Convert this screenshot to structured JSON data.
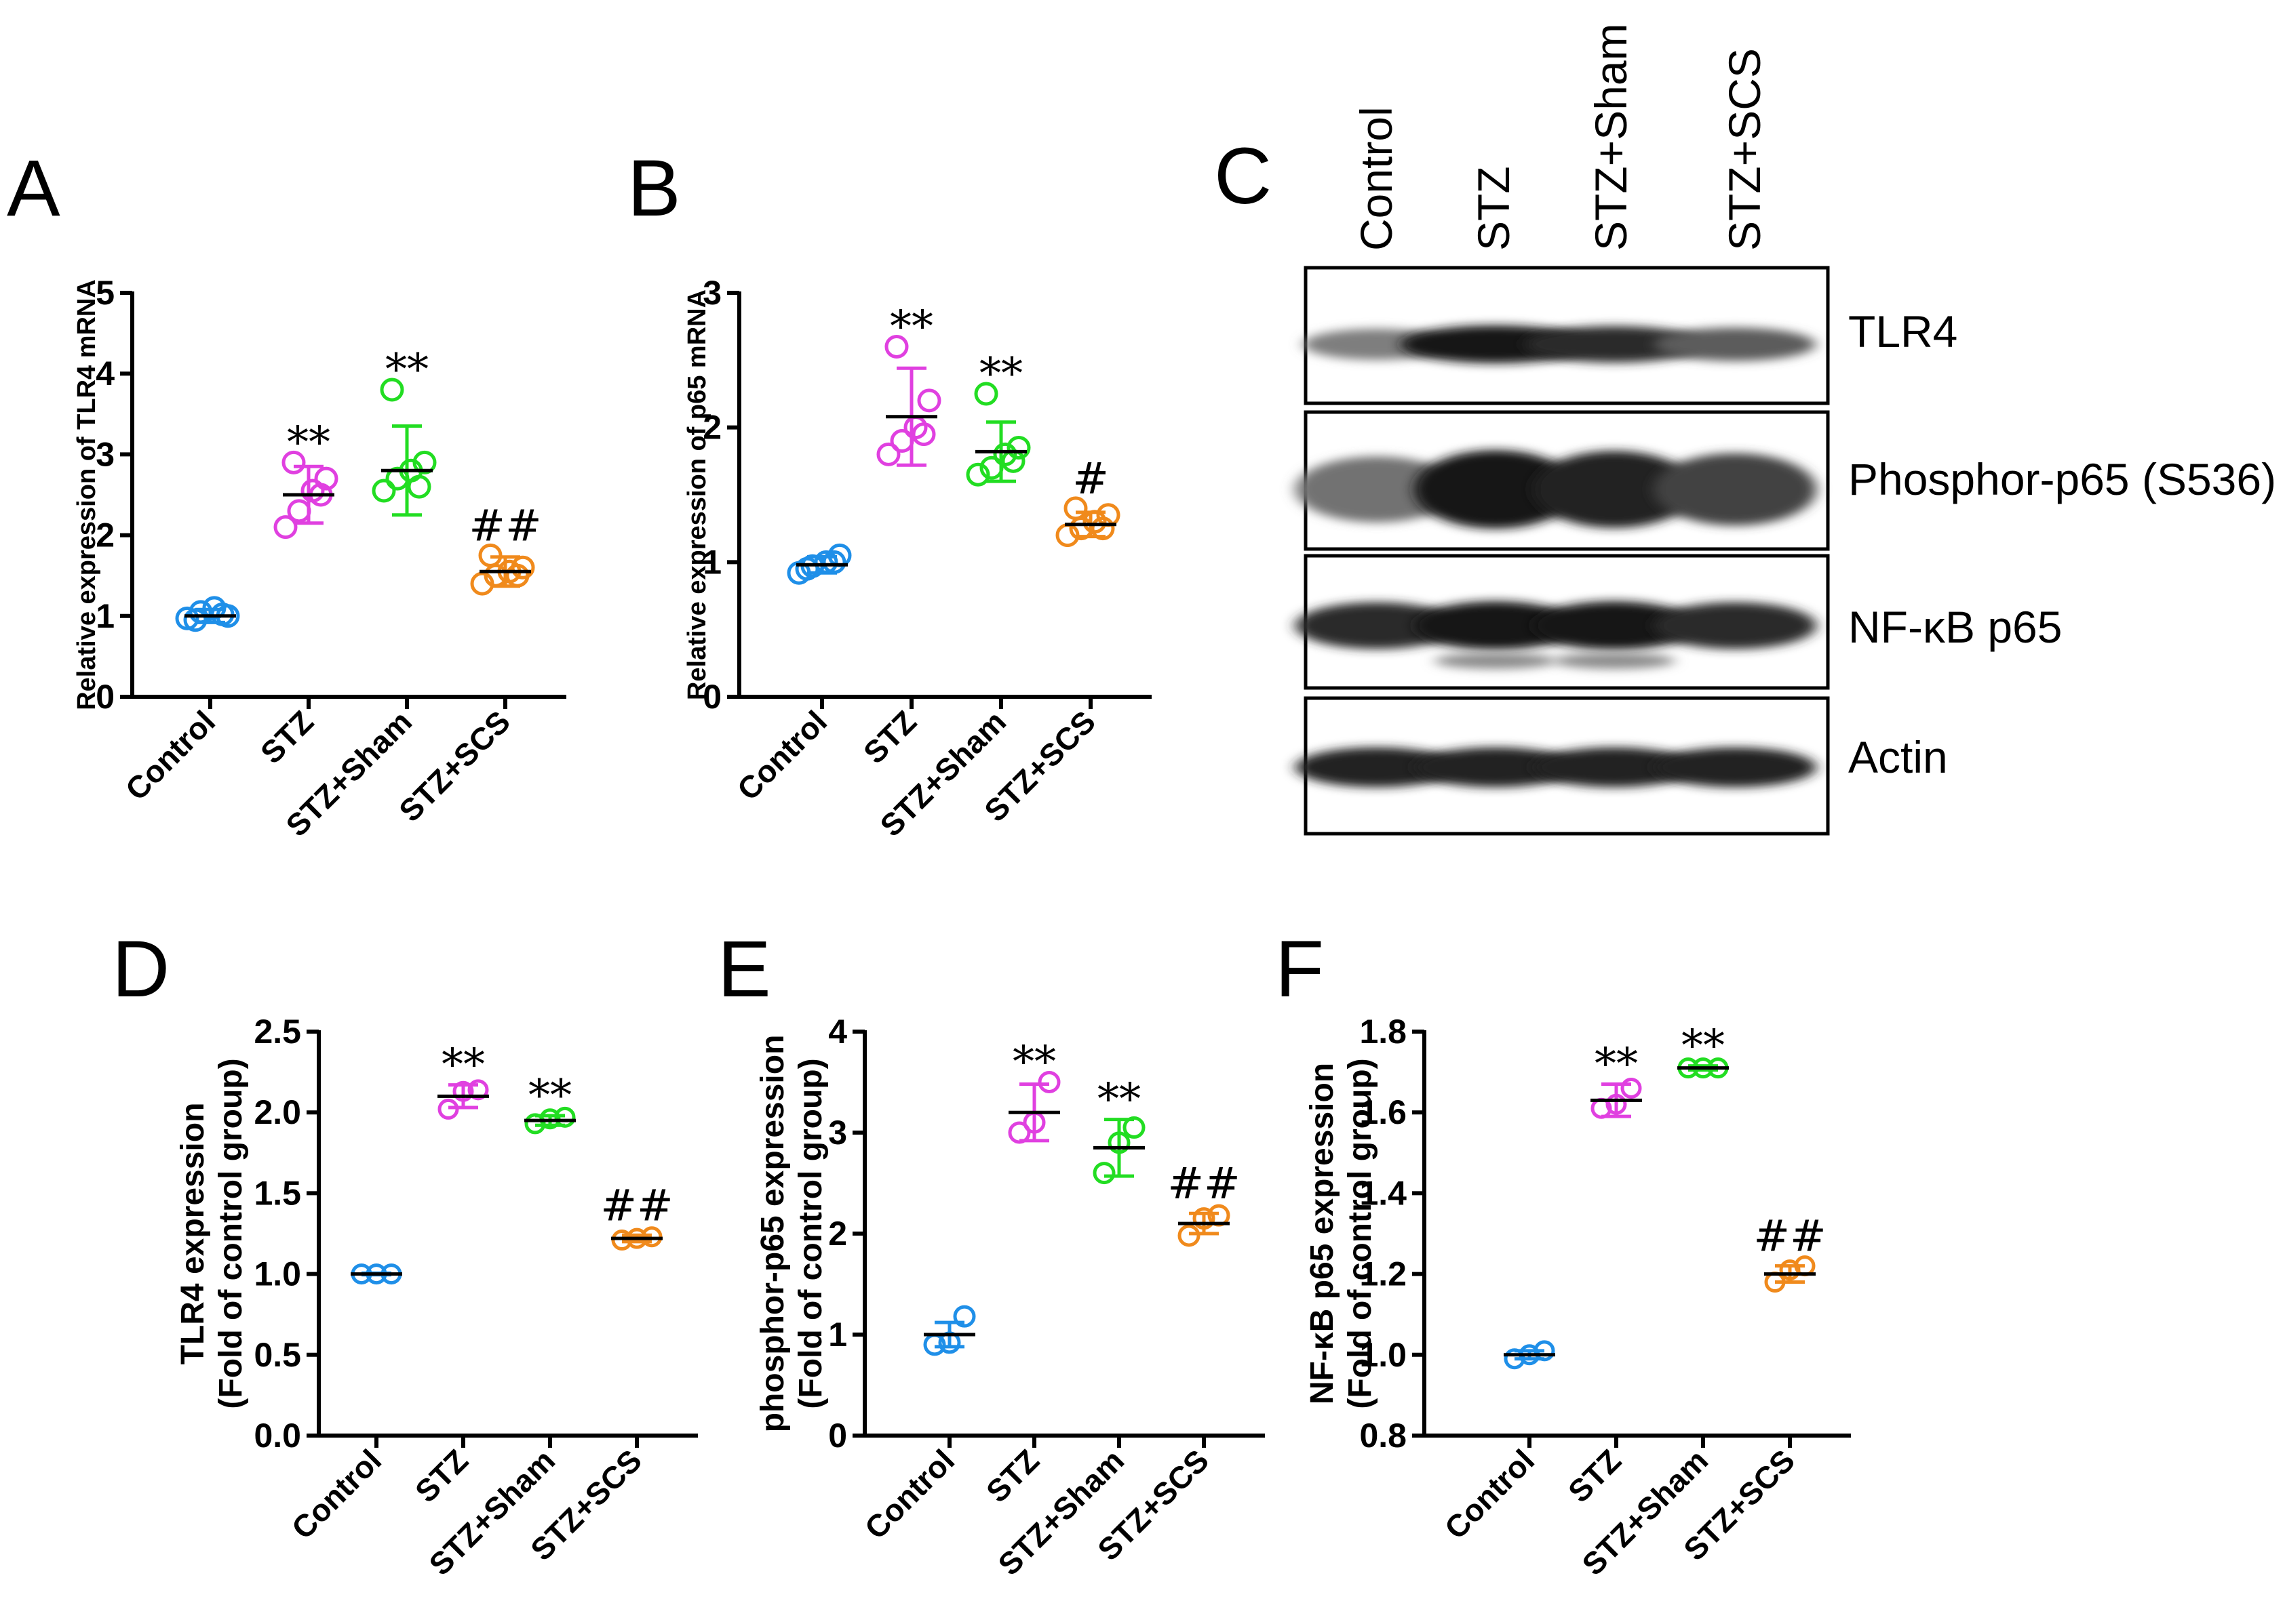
{
  "chart_data": [
    {
      "panel": "A",
      "type": "scatter",
      "ylabel": "Relative expression of TLR4 mRNA",
      "xlabel": "",
      "ylim": [
        0,
        5
      ],
      "yticks": [
        "0",
        "1",
        "2",
        "3",
        "4",
        "5"
      ],
      "categories": [
        "Control",
        "STZ",
        "STZ+Sham",
        "STZ+SCS"
      ],
      "colors": [
        "#1f8fe8",
        "#e040e0",
        "#22dd22",
        "#f08a1c"
      ],
      "means": [
        1.0,
        2.5,
        2.8,
        1.55
      ],
      "sd": [
        0.08,
        0.35,
        0.55,
        0.18
      ],
      "points": [
        [
          0.97,
          1.05,
          1.1,
          1.0,
          0.95,
          1.02
        ],
        [
          2.1,
          2.3,
          2.55,
          2.7,
          2.9,
          2.5
        ],
        [
          2.55,
          2.7,
          2.8,
          2.9,
          3.8,
          2.6
        ],
        [
          1.4,
          1.5,
          1.55,
          1.6,
          1.75,
          1.5
        ]
      ],
      "annotations": [
        "",
        "**",
        "**",
        "##"
      ]
    },
    {
      "panel": "B",
      "type": "scatter",
      "ylabel": "Relative expression of p65 mRNA",
      "xlabel": "",
      "ylim": [
        0,
        3
      ],
      "yticks": [
        "0",
        "1",
        "2",
        "3"
      ],
      "categories": [
        "Control",
        "STZ",
        "STZ+Sham",
        "STZ+SCS"
      ],
      "colors": [
        "#1f8fe8",
        "#e040e0",
        "#22dd22",
        "#f08a1c"
      ],
      "means": [
        0.98,
        2.08,
        1.82,
        1.28
      ],
      "sd": [
        0.06,
        0.36,
        0.22,
        0.09
      ],
      "points": [
        [
          0.92,
          0.97,
          1.0,
          1.05,
          0.95,
          1.0
        ],
        [
          1.8,
          1.9,
          2.0,
          2.2,
          2.6,
          1.95
        ],
        [
          1.65,
          1.7,
          1.8,
          1.85,
          2.25,
          1.75
        ],
        [
          1.2,
          1.25,
          1.3,
          1.35,
          1.4,
          1.25
        ]
      ],
      "annotations": [
        "",
        "**",
        "**",
        "#"
      ]
    },
    {
      "panel": "D",
      "type": "scatter",
      "ylabel": [
        "TLR4 expression",
        "(Fold of control group)"
      ],
      "xlabel": "",
      "ylim": [
        0,
        2.5
      ],
      "yticks": [
        "0.0",
        "0.5",
        "1.0",
        "1.5",
        "2.0",
        "2.5"
      ],
      "categories": [
        "Control",
        "STZ",
        "STZ+Sham",
        "STZ+SCS"
      ],
      "colors": [
        "#1f8fe8",
        "#e040e0",
        "#22dd22",
        "#f08a1c"
      ],
      "means": [
        1.0,
        2.1,
        1.95,
        1.22
      ],
      "sd": [
        0.005,
        0.07,
        0.03,
        0.02
      ],
      "points": [
        [
          1.0,
          1.0,
          1.0
        ],
        [
          2.02,
          2.13,
          2.14
        ],
        [
          1.93,
          1.96,
          1.97
        ],
        [
          1.21,
          1.22,
          1.23
        ]
      ],
      "annotations": [
        "",
        "**",
        "**",
        "##"
      ]
    },
    {
      "panel": "E",
      "type": "scatter",
      "ylabel": [
        "phosphor-p65 expression",
        "(Fold of control group)"
      ],
      "xlabel": "",
      "ylim": [
        0,
        4
      ],
      "yticks": [
        "0",
        "1",
        "2",
        "3",
        "4"
      ],
      "categories": [
        "Control",
        "STZ",
        "STZ+Sham",
        "STZ+SCS"
      ],
      "colors": [
        "#1f8fe8",
        "#e040e0",
        "#22dd22",
        "#f08a1c"
      ],
      "means": [
        1.0,
        3.2,
        2.85,
        2.1
      ],
      "sd": [
        0.12,
        0.28,
        0.28,
        0.1
      ],
      "points": [
        [
          0.9,
          0.92,
          1.18
        ],
        [
          3.0,
          3.1,
          3.5
        ],
        [
          2.6,
          2.9,
          3.05
        ],
        [
          1.98,
          2.15,
          2.18
        ]
      ],
      "annotations": [
        "",
        "**",
        "**",
        "##"
      ]
    },
    {
      "panel": "F",
      "type": "scatter",
      "ylabel": [
        "NF-κB p65 expression",
        "(Fold of control group)"
      ],
      "xlabel": "",
      "ylim": [
        0.8,
        1.8
      ],
      "yticks": [
        "0.8",
        "1.0",
        "1.2",
        "1.4",
        "1.6",
        "1.8"
      ],
      "categories": [
        "Control",
        "STZ",
        "STZ+Sham",
        "STZ+SCS"
      ],
      "colors": [
        "#1f8fe8",
        "#e040e0",
        "#22dd22",
        "#f08a1c"
      ],
      "means": [
        1.0,
        1.63,
        1.71,
        1.2
      ],
      "sd": [
        0.01,
        0.04,
        0.005,
        0.02
      ],
      "points": [
        [
          0.99,
          1.0,
          1.01
        ],
        [
          1.61,
          1.62,
          1.66
        ],
        [
          1.71,
          1.71,
          1.71
        ],
        [
          1.18,
          1.21,
          1.22
        ]
      ],
      "annotations": [
        "",
        "**",
        "**",
        "##"
      ]
    }
  ],
  "panel_labels": [
    "A",
    "B",
    "C",
    "D",
    "E",
    "F"
  ],
  "blot": {
    "lanes": [
      "Control",
      "STZ",
      "STZ+Sham",
      "STZ+SCS"
    ],
    "rows": [
      {
        "label": "TLR4",
        "intensity": [
          0.55,
          1.0,
          0.9,
          0.7
        ]
      },
      {
        "label": "Phosphor-p65 (S536)",
        "intensity": [
          0.6,
          1.0,
          0.95,
          0.8
        ]
      },
      {
        "label": "NF-κB p65",
        "intensity": [
          0.9,
          1.0,
          1.0,
          0.9
        ]
      },
      {
        "label": "Actin",
        "intensity": [
          0.95,
          0.95,
          0.95,
          0.95
        ]
      }
    ]
  }
}
